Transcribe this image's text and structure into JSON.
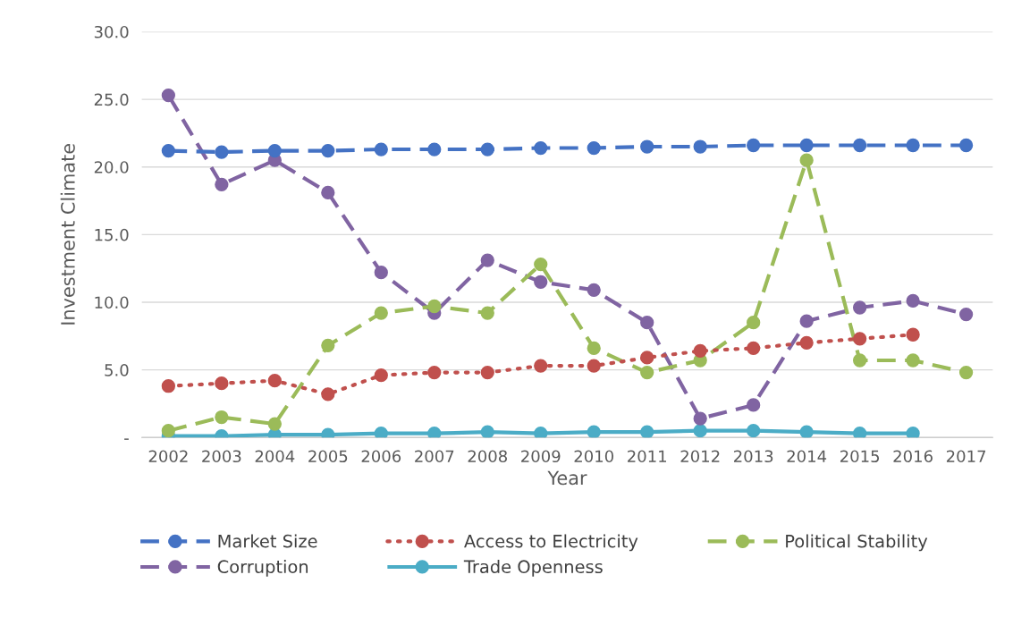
{
  "chart_data": {
    "type": "line",
    "xlabel": "Year",
    "ylabel": "Investment Climate",
    "categories": [
      "2002",
      "2003",
      "2004",
      "2005",
      "2006",
      "2007",
      "2008",
      "2009",
      "2010",
      "2011",
      "2012",
      "2013",
      "2014",
      "2015",
      "2016",
      "2017"
    ],
    "ylim": [
      0,
      30
    ],
    "yticks": [
      {
        "value": 0,
        "label": "-"
      },
      {
        "value": 5,
        "label": "5.0"
      },
      {
        "value": 10,
        "label": "10.0"
      },
      {
        "value": 15,
        "label": "15.0"
      },
      {
        "value": 20,
        "label": "20.0"
      },
      {
        "value": 25,
        "label": "25.0"
      },
      {
        "value": 30,
        "label": "30.0"
      }
    ],
    "grid": "y",
    "legend": "bottom",
    "marker": "circle",
    "series": [
      {
        "name": "Market Size",
        "color": "#4472c4",
        "line_style": "dashed",
        "values": [
          21.2,
          21.1,
          21.2,
          21.2,
          21.3,
          21.3,
          21.3,
          21.4,
          21.4,
          21.5,
          21.5,
          21.6,
          21.6,
          21.6,
          21.6,
          21.6
        ]
      },
      {
        "name": "Access to Electricity",
        "color": "#c0504d",
        "line_style": "dotted",
        "values": [
          3.8,
          4.0,
          4.2,
          3.2,
          4.6,
          4.8,
          4.8,
          5.3,
          5.3,
          5.9,
          6.4,
          6.6,
          7.0,
          7.3,
          7.6,
          null
        ]
      },
      {
        "name": "Political Stability",
        "color": "#9bbb59",
        "line_style": "dashed",
        "values": [
          0.5,
          1.5,
          1.0,
          6.8,
          9.2,
          9.7,
          9.2,
          12.8,
          6.6,
          4.8,
          5.7,
          8.5,
          20.5,
          5.7,
          5.7,
          4.8
        ]
      },
      {
        "name": "Corruption",
        "color": "#8064a2",
        "line_style": "dashed",
        "values": [
          25.3,
          18.7,
          20.5,
          18.1,
          12.2,
          9.2,
          13.1,
          11.5,
          10.9,
          8.5,
          1.4,
          2.4,
          8.6,
          9.6,
          10.1,
          9.1
        ]
      },
      {
        "name": "Trade Openness",
        "color": "#4bacc6",
        "line_style": "solid",
        "values": [
          0.1,
          0.1,
          0.2,
          0.2,
          0.3,
          0.3,
          0.4,
          0.3,
          0.4,
          0.4,
          0.5,
          0.5,
          0.4,
          0.3,
          0.3,
          null
        ]
      }
    ]
  }
}
